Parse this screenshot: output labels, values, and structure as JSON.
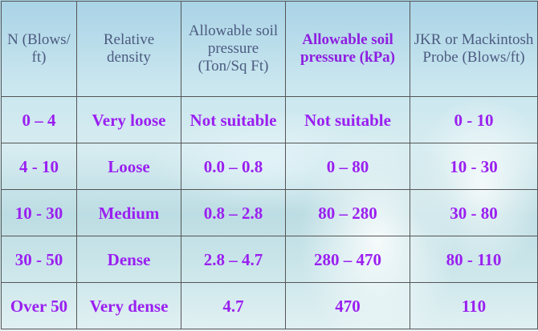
{
  "table": {
    "header": [
      "N (Blows/ ft)",
      "Relative density",
      "Allowable soil pressure (Ton/Sq Ft)",
      "Allowable soil pressure (kPa)",
      "JKR or Mackintosh Probe (Blows/ft)"
    ],
    "rows": [
      [
        "0 – 4",
        "Very loose",
        "Not suitable",
        "Not suitable",
        "0 - 10"
      ],
      [
        "4 - 10",
        "Loose",
        "0.0 – 0.8",
        "0 – 80",
        "10 - 30"
      ],
      [
        "10 - 30",
        "Medium",
        "0.8 – 2.8",
        "80 – 280",
        "30 - 80"
      ],
      [
        "30 - 50",
        "Dense",
        "2.8 – 4.7",
        "280 – 470",
        "80 - 110"
      ],
      [
        "Over 50",
        "Very dense",
        "4.7",
        "470",
        "110"
      ]
    ]
  }
}
